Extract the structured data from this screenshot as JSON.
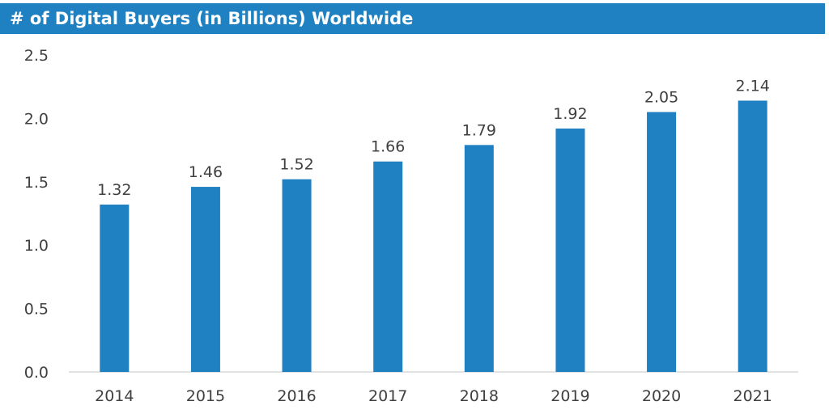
{
  "title": "# of Digital Buyers (in Billions) Worldwide",
  "chart_data": {
    "type": "bar",
    "title": "# of Digital Buyers (in Billions) Worldwide",
    "categories": [
      "2014",
      "2015",
      "2016",
      "2017",
      "2018",
      "2019",
      "2020",
      "2021"
    ],
    "values": [
      1.32,
      1.46,
      1.52,
      1.66,
      1.79,
      1.92,
      2.05,
      2.14
    ],
    "data_labels": [
      "1.32",
      "1.46",
      "1.52",
      "1.66",
      "1.79",
      "1.92",
      "2.05",
      "2.14"
    ],
    "yticks": [
      "0.0",
      "0.5",
      "1.0",
      "1.5",
      "2.0",
      "2.5"
    ],
    "ylim": [
      0,
      2.5
    ],
    "grid": false,
    "legend": "none"
  },
  "colors": {
    "bar": "#1f81c1",
    "title_bar": "#1f81c1",
    "axis": "#d9d9d9",
    "text": "#404040"
  }
}
